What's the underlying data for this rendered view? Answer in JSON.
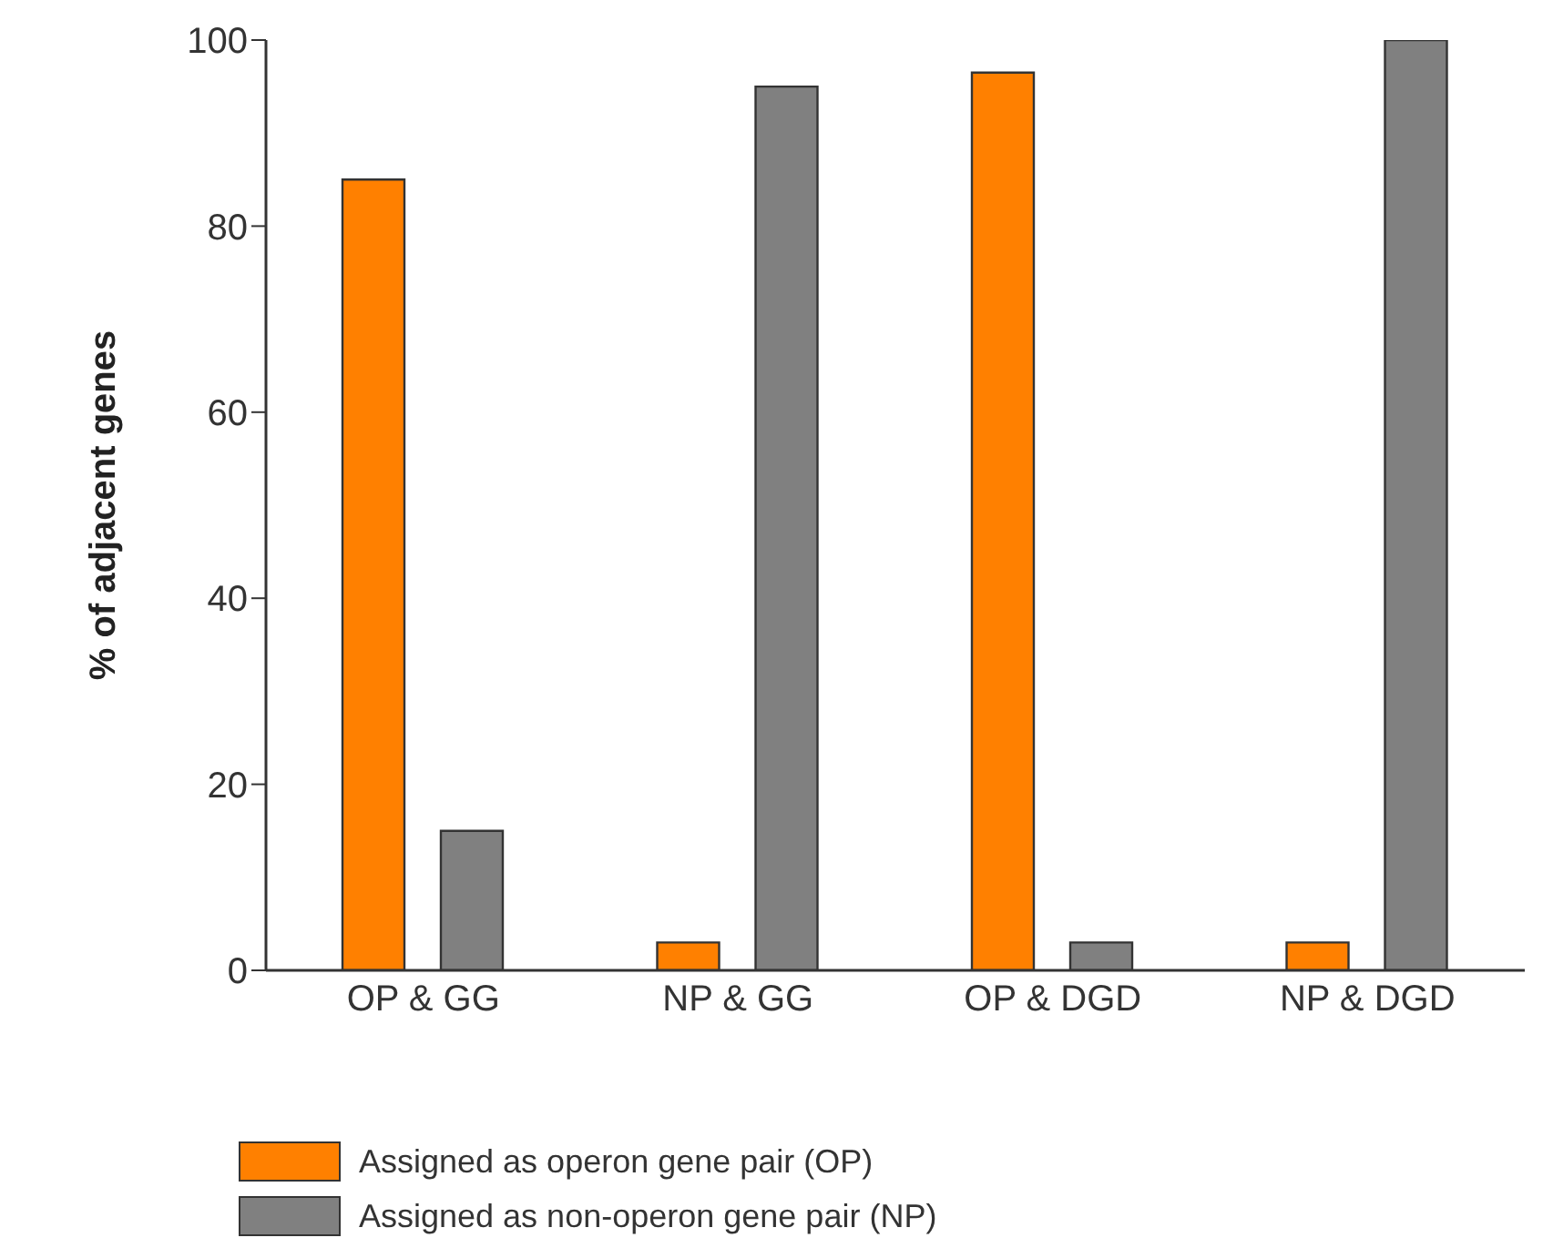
{
  "chart_data": {
    "type": "bar",
    "ylabel": "% of adjacent genes",
    "categories": [
      "OP & GG",
      "NP & GG",
      "OP & DGD",
      "NP & DGD"
    ],
    "series": [
      {
        "name": "Assigned as operon gene pair (OP)",
        "color": "#ff8000",
        "values": [
          85,
          3,
          96.5,
          3
        ]
      },
      {
        "name": "Assigned as non-operon gene pair (NP)",
        "color": "#808080",
        "values": [
          15,
          95,
          3,
          100
        ]
      }
    ],
    "ylim": [
      0,
      100
    ],
    "yticks": [
      0,
      20,
      40,
      60,
      80,
      100
    ],
    "grid": false,
    "legend": "bottom left"
  }
}
